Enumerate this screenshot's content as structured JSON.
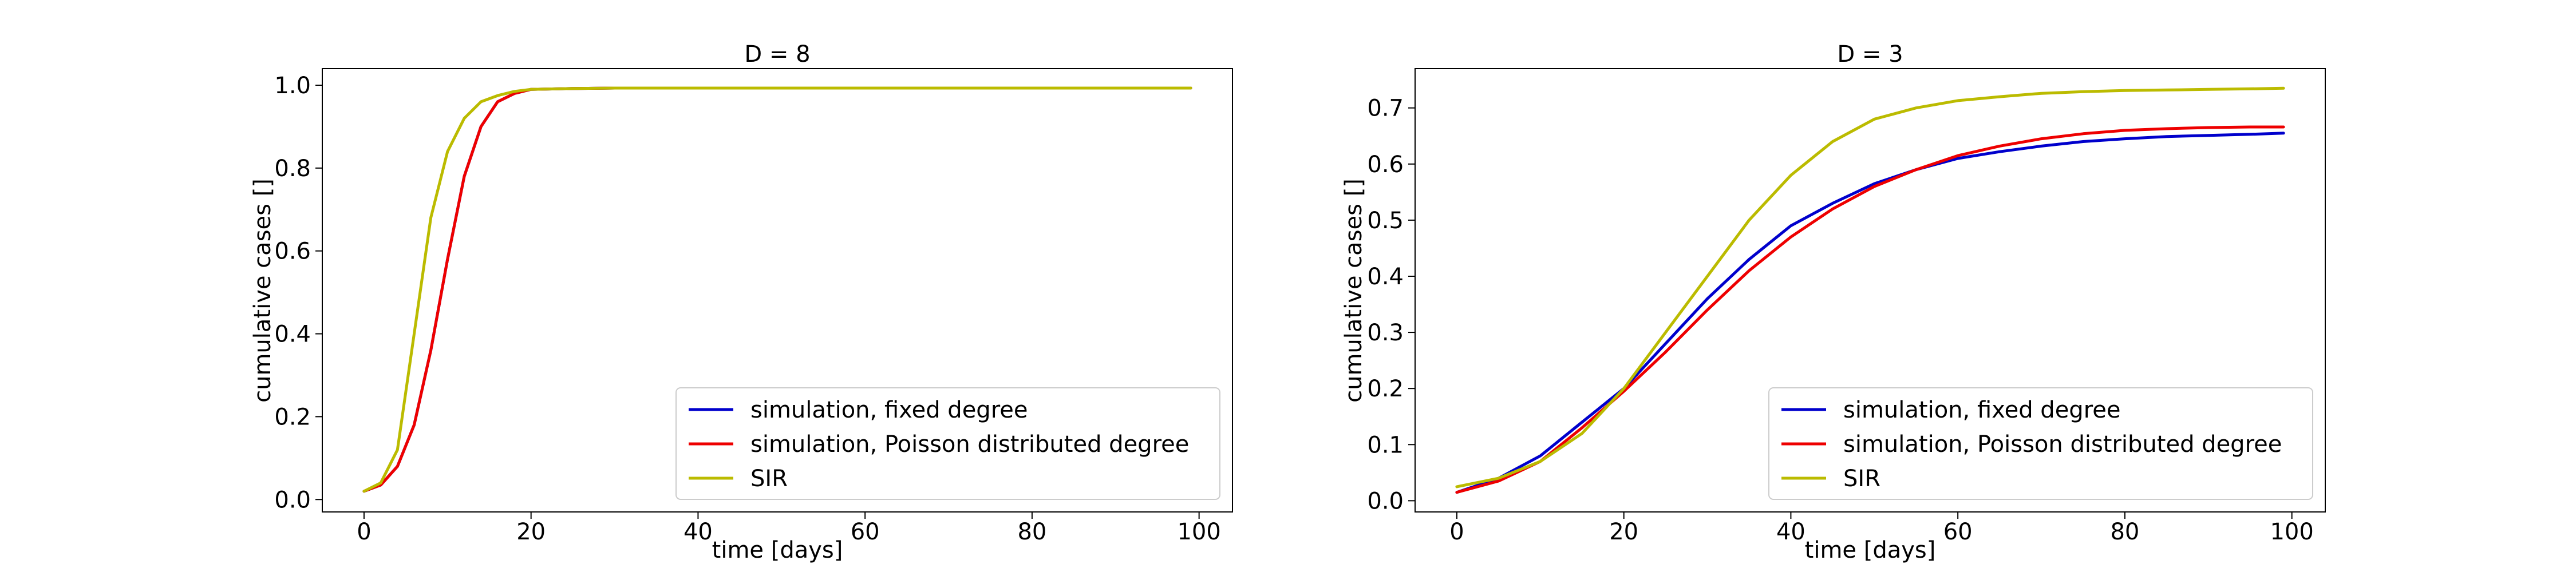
{
  "chart_data": [
    {
      "type": "line",
      "title": "D = 8",
      "xlabel": "time [days]",
      "ylabel": "cumulative cases []",
      "xlim": [
        -5,
        104
      ],
      "ylim": [
        -0.03,
        1.04
      ],
      "xticks": [
        0,
        20,
        40,
        60,
        80,
        100
      ],
      "yticks": [
        0.0,
        0.2,
        0.4,
        0.6,
        0.8,
        1.0
      ],
      "xtick_labels": [
        "0",
        "20",
        "40",
        "60",
        "80",
        "100"
      ],
      "ytick_labels": [
        "0.0",
        "0.2",
        "0.4",
        "0.6",
        "0.8",
        "1.0"
      ],
      "grid": false,
      "legend_position": "lower-right",
      "series": [
        {
          "name": "simulation, fixed degree",
          "color": "#0000cc",
          "x": [
            0,
            2,
            4,
            6,
            8,
            10,
            12,
            14,
            16,
            18,
            20,
            25,
            30,
            40,
            60,
            80,
            99
          ],
          "y": [
            0.02,
            0.035,
            0.08,
            0.18,
            0.36,
            0.58,
            0.78,
            0.9,
            0.96,
            0.98,
            0.99,
            0.992,
            0.993,
            0.993,
            0.993,
            0.993,
            0.993
          ]
        },
        {
          "name": "simulation, Poisson distributed degree",
          "color": "#ee0000",
          "x": [
            0,
            2,
            4,
            6,
            8,
            10,
            12,
            14,
            16,
            18,
            20,
            25,
            30,
            40,
            60,
            80,
            99
          ],
          "y": [
            0.02,
            0.035,
            0.08,
            0.18,
            0.36,
            0.58,
            0.78,
            0.9,
            0.96,
            0.98,
            0.99,
            0.992,
            0.993,
            0.993,
            0.993,
            0.993,
            0.993
          ]
        },
        {
          "name": "SIR",
          "color": "#bbbb00",
          "x": [
            0,
            2,
            4,
            6,
            8,
            10,
            12,
            14,
            16,
            18,
            20,
            25,
            30,
            40,
            60,
            80,
            99
          ],
          "y": [
            0.02,
            0.04,
            0.12,
            0.4,
            0.68,
            0.84,
            0.92,
            0.96,
            0.975,
            0.985,
            0.99,
            0.992,
            0.993,
            0.993,
            0.993,
            0.993,
            0.993
          ]
        }
      ]
    },
    {
      "type": "line",
      "title": "D = 3",
      "xlabel": "time [days]",
      "ylabel": "cumulative cases []",
      "xlim": [
        -5,
        104
      ],
      "ylim": [
        -0.02,
        0.77
      ],
      "xticks": [
        0,
        20,
        40,
        60,
        80,
        100
      ],
      "yticks": [
        0.0,
        0.1,
        0.2,
        0.3,
        0.4,
        0.5,
        0.6,
        0.7
      ],
      "xtick_labels": [
        "0",
        "20",
        "40",
        "60",
        "80",
        "100"
      ],
      "ytick_labels": [
        "0.0",
        "0.1",
        "0.2",
        "0.3",
        "0.4",
        "0.5",
        "0.6",
        "0.7"
      ],
      "grid": false,
      "legend_position": "lower-right",
      "series": [
        {
          "name": "simulation, fixed degree",
          "color": "#0000cc",
          "x": [
            0,
            5,
            10,
            15,
            20,
            25,
            30,
            35,
            40,
            45,
            50,
            55,
            60,
            65,
            70,
            75,
            80,
            85,
            90,
            95,
            99
          ],
          "y": [
            0.015,
            0.04,
            0.08,
            0.14,
            0.2,
            0.28,
            0.36,
            0.43,
            0.49,
            0.53,
            0.565,
            0.59,
            0.61,
            0.622,
            0.632,
            0.64,
            0.645,
            0.649,
            0.651,
            0.653,
            0.655
          ]
        },
        {
          "name": "simulation, Poisson distributed degree",
          "color": "#ee0000",
          "x": [
            0,
            5,
            10,
            15,
            20,
            25,
            30,
            35,
            40,
            45,
            50,
            55,
            60,
            65,
            70,
            75,
            80,
            85,
            90,
            95,
            99
          ],
          "y": [
            0.015,
            0.035,
            0.07,
            0.13,
            0.195,
            0.265,
            0.34,
            0.41,
            0.47,
            0.52,
            0.56,
            0.59,
            0.615,
            0.632,
            0.645,
            0.654,
            0.66,
            0.663,
            0.665,
            0.666,
            0.666
          ]
        },
        {
          "name": "SIR",
          "color": "#bbbb00",
          "x": [
            0,
            5,
            10,
            15,
            20,
            25,
            30,
            35,
            40,
            45,
            50,
            55,
            60,
            65,
            70,
            75,
            80,
            85,
            90,
            95,
            99
          ],
          "y": [
            0.025,
            0.04,
            0.07,
            0.12,
            0.2,
            0.3,
            0.4,
            0.5,
            0.58,
            0.64,
            0.68,
            0.7,
            0.713,
            0.72,
            0.726,
            0.729,
            0.731,
            0.732,
            0.733,
            0.734,
            0.735
          ]
        }
      ]
    }
  ]
}
